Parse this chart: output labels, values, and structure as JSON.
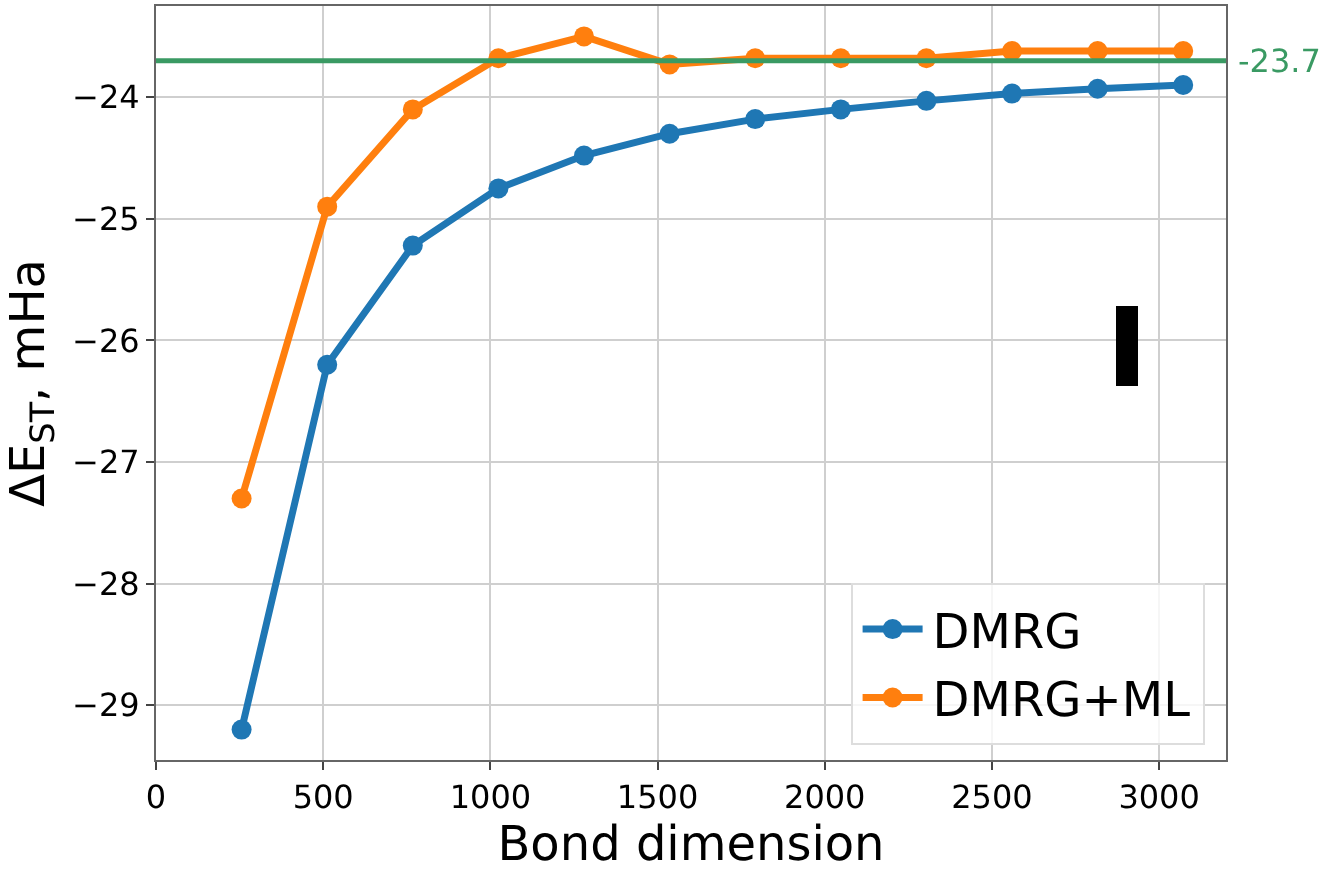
{
  "chart_data": {
    "type": "line",
    "xlabel": "Bond dimension",
    "ylabel": "ΔE$_{ST}$, mHa",
    "x": [
      256,
      512,
      768,
      1024,
      1280,
      1536,
      1792,
      2048,
      2304,
      2560,
      2816,
      3072
    ],
    "series": [
      {
        "name": "DMRG",
        "color": "#1f77b4",
        "values": [
          -29.2,
          -26.2,
          -25.22,
          -24.75,
          -24.48,
          -24.3,
          -24.18,
          -24.1,
          -24.03,
          -23.97,
          -23.93,
          -23.9
        ]
      },
      {
        "name": "DMRG+ML",
        "color": "#ff7f0e",
        "values": [
          -27.3,
          -24.9,
          -24.1,
          -23.68,
          -23.5,
          -23.73,
          -23.68,
          -23.68,
          -23.68,
          -23.62,
          -23.62,
          -23.62
        ]
      }
    ],
    "xlim": [
      0,
      3200
    ],
    "xticks": [
      0,
      500,
      1000,
      1500,
      2000,
      2500,
      3000
    ],
    "ylim": [
      -29.45,
      -23.25
    ],
    "yticks": [
      {
        "value": -29,
        "label": "−29"
      },
      {
        "value": -28,
        "label": "−28"
      },
      {
        "value": -27,
        "label": "−27"
      },
      {
        "value": -26,
        "label": "−26"
      },
      {
        "value": -25,
        "label": "−25"
      },
      {
        "value": -24,
        "label": "−24"
      }
    ],
    "ref_lines": [
      {
        "axis": "y",
        "value": -23.7,
        "label": "-23.7",
        "color": "#3a9a63"
      }
    ],
    "grid": true,
    "legend": "bottom right",
    "marker": "circle",
    "line_style": "solid"
  }
}
